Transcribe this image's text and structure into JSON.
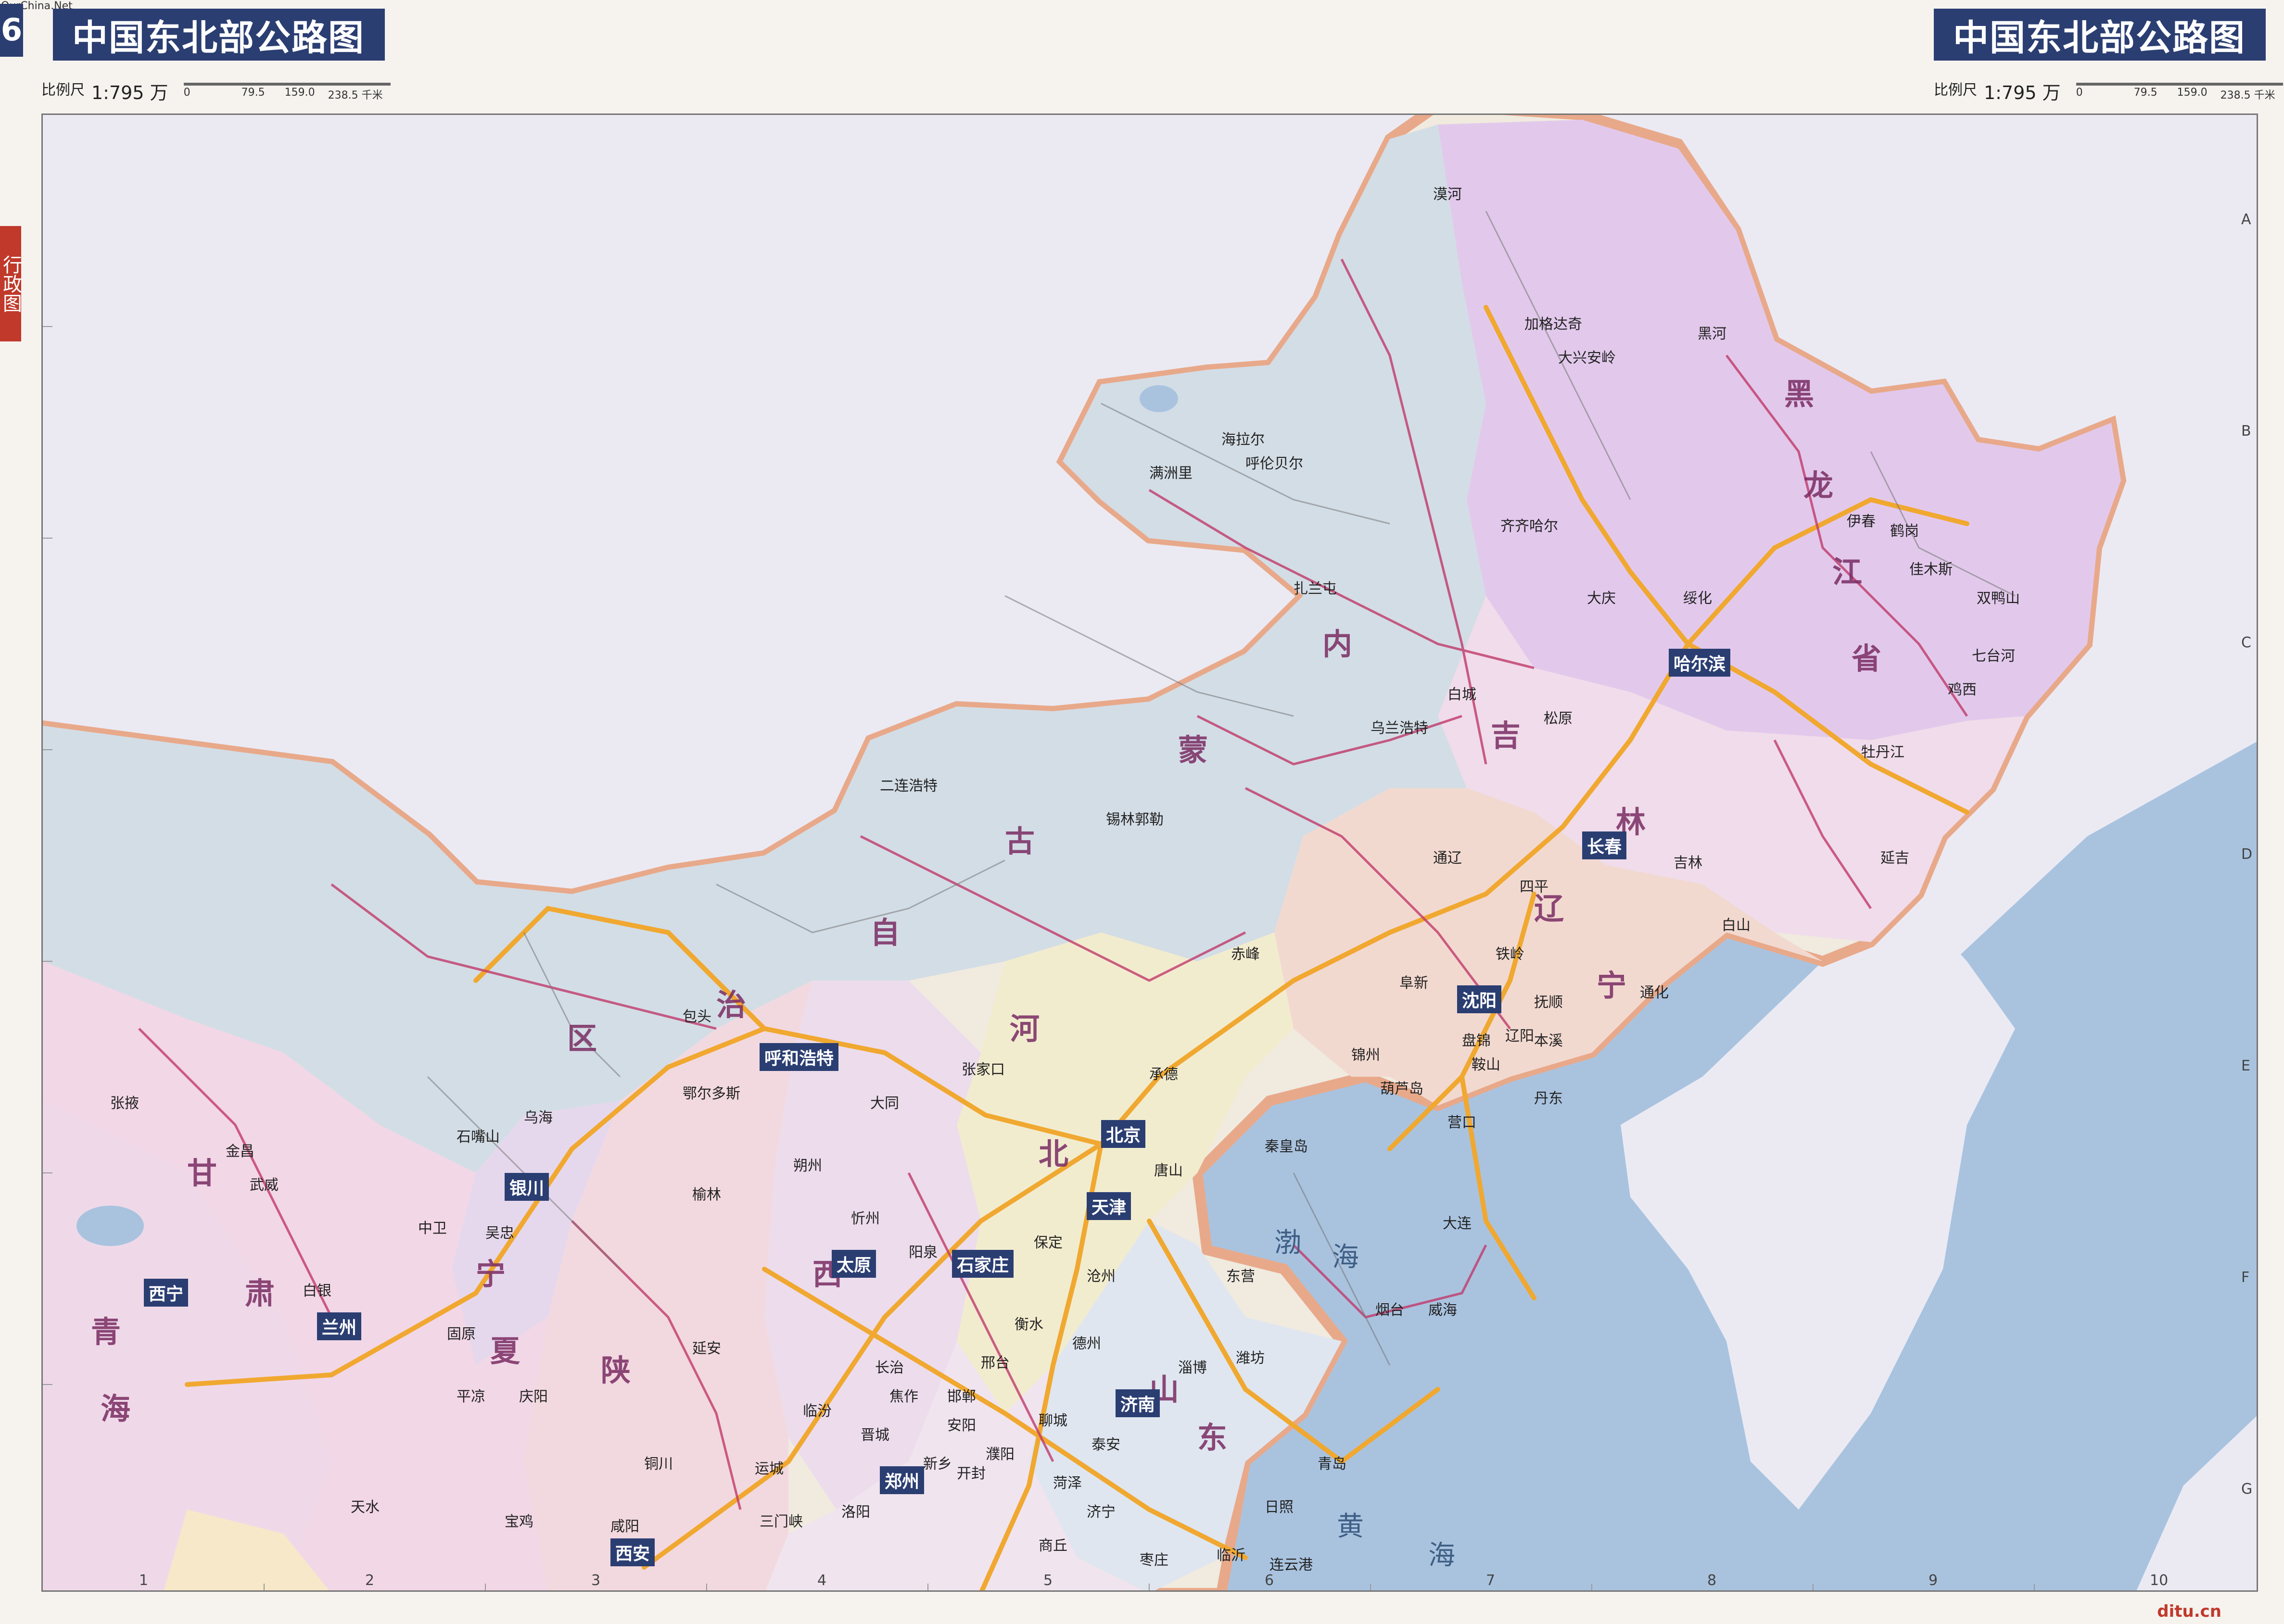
{
  "header": {
    "page_number": "6",
    "title_left": "中国东北部公路图",
    "title_right": "中国东北部公路图",
    "scale_label": "比例尺",
    "scale_ratio": "1:795 万",
    "scale_ticks": [
      "0",
      "79.5",
      "159.0",
      "238.5 千米"
    ],
    "corner_mark": "OurChina.Net"
  },
  "side_tab": "行政图",
  "edge_letters": [
    "A",
    "B",
    "C",
    "D",
    "E",
    "F",
    "G"
  ],
  "edge_numbers": [
    "1",
    "2",
    "3",
    "4",
    "5",
    "6",
    "7",
    "8",
    "9",
    "10"
  ],
  "capitals": [
    "北京",
    "天津",
    "哈尔滨",
    "长春",
    "沈阳",
    "呼和浩特",
    "石家庄",
    "太原",
    "济南",
    "郑州",
    "西安",
    "兰州",
    "银川",
    "西宁"
  ],
  "provinces": [
    "黑",
    "龙",
    "江",
    "省",
    "内",
    "蒙",
    "古",
    "自",
    "治",
    "区",
    "吉",
    "林",
    "河",
    "北",
    "山",
    "东",
    "西",
    "陕",
    "甘",
    "肃",
    "宁",
    "夏",
    "青",
    "海",
    "辽",
    "宁"
  ],
  "seas": [
    "渤",
    "海",
    "黄",
    "海"
  ],
  "cities": [
    "满洲里",
    "海拉尔",
    "呼伦贝尔",
    "扎兰屯",
    "大兴安岭",
    "加格达奇",
    "黑河",
    "漠河",
    "齐齐哈尔",
    "大庆",
    "伊春",
    "鹤岗",
    "佳木斯",
    "双鸭山",
    "七台河",
    "鸡西",
    "牡丹江",
    "绥化",
    "松原",
    "白城",
    "乌兰浩特",
    "四平",
    "通辽",
    "赤峰",
    "锡林郭勒",
    "二连浩特",
    "包头",
    "鄂尔多斯",
    "乌海",
    "石嘴山",
    "张家口",
    "大同",
    "朔州",
    "承德",
    "秦皇岛",
    "唐山",
    "锦州",
    "葫芦岛",
    "阜新",
    "铁岭",
    "抚顺",
    "本溪",
    "丹东",
    "辽阳",
    "鞍山",
    "营口",
    "大连",
    "盘锦",
    "吉林",
    "通化",
    "白山",
    "延吉",
    "烟台",
    "威海",
    "青岛",
    "潍坊",
    "淄博",
    "日照",
    "临沂",
    "东营",
    "德州",
    "聊城",
    "泰安",
    "济宁",
    "枣庄",
    "保定",
    "沧州",
    "衡水",
    "邢台",
    "邯郸",
    "安阳",
    "新乡",
    "开封",
    "洛阳",
    "三门峡",
    "运城",
    "临汾",
    "长治",
    "晋城",
    "阳泉",
    "忻州",
    "榆林",
    "延安",
    "铜川",
    "宝鸡",
    "咸阳",
    "天水",
    "平凉",
    "庆阳",
    "固原",
    "中卫",
    "吴忠",
    "白银",
    "武威",
    "金昌",
    "张掖",
    "商丘",
    "菏泽",
    "濮阳",
    "焦作",
    "连云港"
  ],
  "watermark": "ditu.cn",
  "colors": {
    "title_bg": "#2b3e72",
    "border_pink": "#e8a98a",
    "sea_blue": "#a9c3df",
    "land_heilongjiang": "#e2c9ec",
    "land_inner_mongolia": "#d3dde6",
    "land_jilin": "#f0dcea",
    "land_liaoning": "#f2d9d0",
    "land_hebei": "#f2eccf",
    "land_shandong": "#dfe6f0",
    "land_shanxi": "#ecdcec",
    "land_outside": "#ebeaf3",
    "road_highway": "#f0a830",
    "road_main": "#c0396a"
  }
}
